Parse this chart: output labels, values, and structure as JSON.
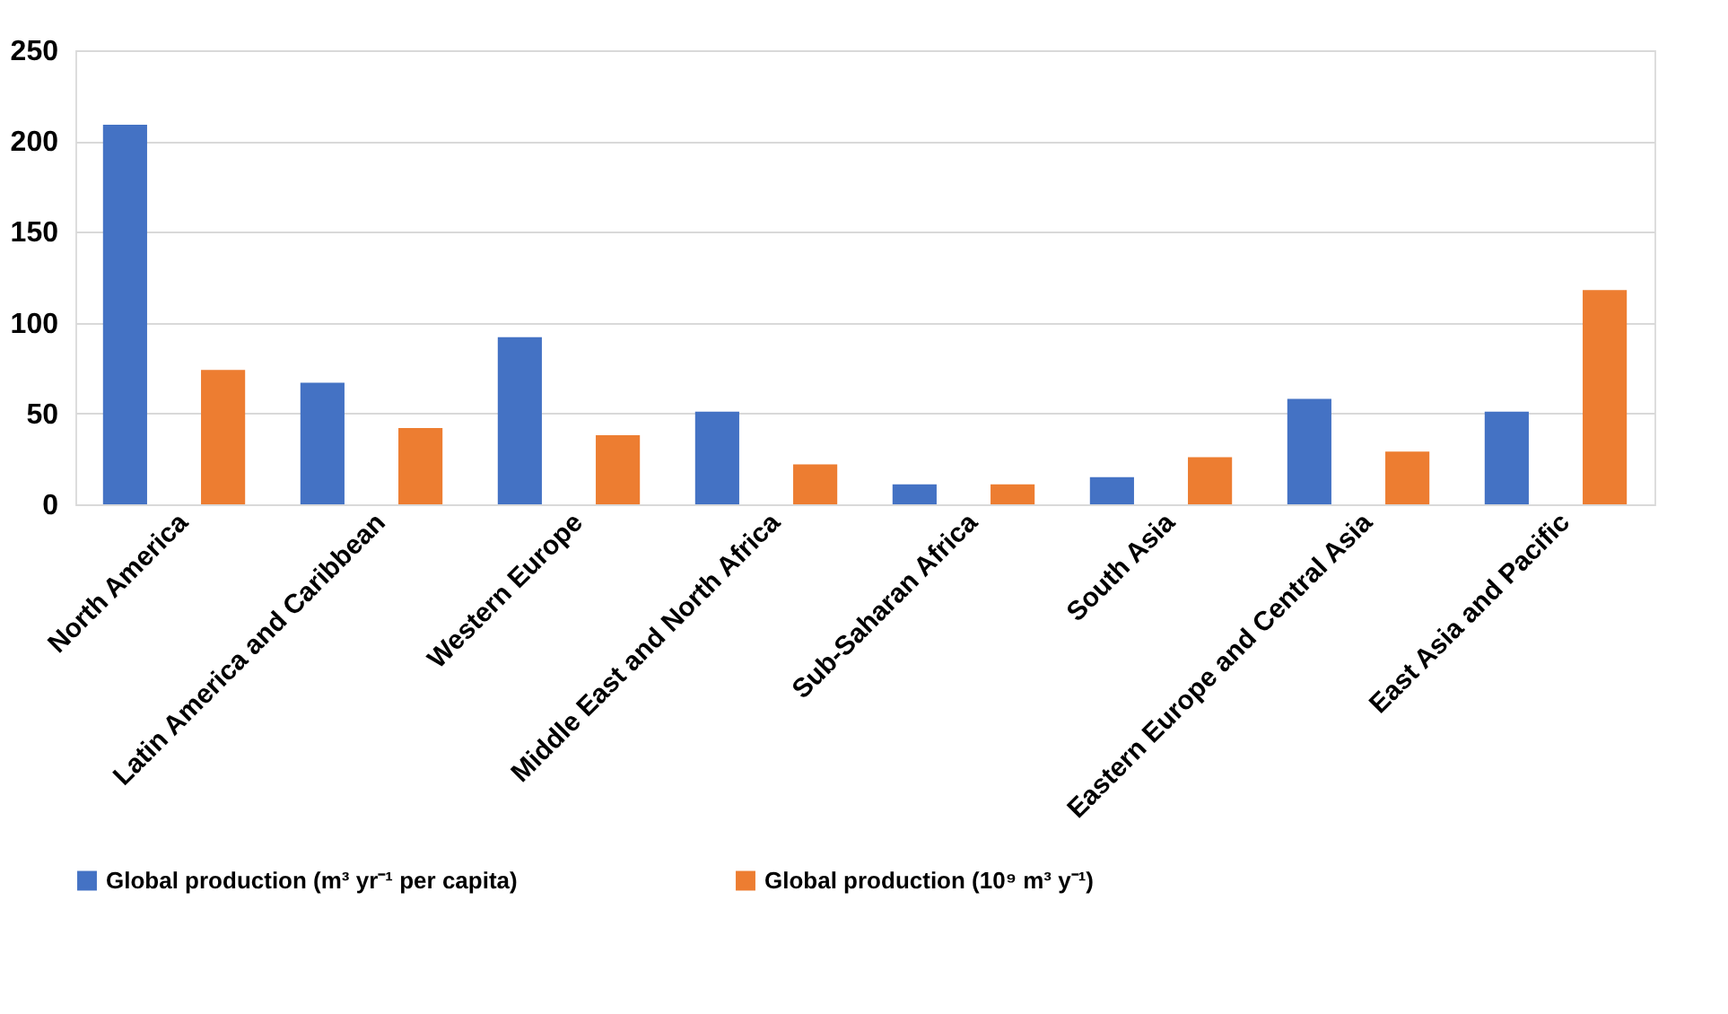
{
  "chart_data": {
    "type": "bar",
    "categories": [
      "North America",
      "Latin America and Caribbean",
      "Western Europe",
      "Middle East and North Africa",
      "Sub-Saharan Africa",
      "South Asia",
      "Eastern Europe and Central Asia",
      "East Asia and Pacific"
    ],
    "series": [
      {
        "name": "Global production (m³ yr⁻¹ per capita)",
        "color": "#4472c4",
        "values": [
          209,
          67,
          92,
          51,
          11,
          15,
          58,
          51
        ]
      },
      {
        "name": "Global production (10⁹ m³ y⁻¹)",
        "color": "#ed7d31",
        "values": [
          74,
          42,
          38,
          22,
          11,
          26,
          29,
          118
        ]
      }
    ],
    "ylim": [
      0,
      250
    ],
    "yticks": [
      0,
      50,
      100,
      150,
      200,
      250
    ],
    "grid": "y",
    "legend": "bottom"
  }
}
